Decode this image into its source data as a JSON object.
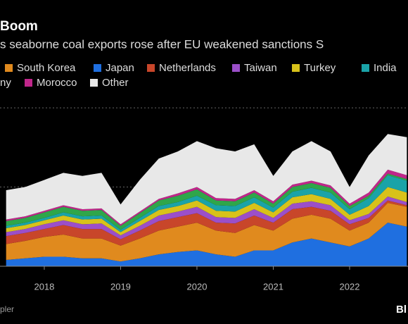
{
  "chart_data": {
    "type": "stacked_area",
    "title": "Boom",
    "subtitle": "s seaborne coal exports rose after EU weakened sanctions S",
    "source": "pler",
    "logo": "Bl",
    "x": [
      2017.5,
      2017.75,
      2018,
      2018.25,
      2018.5,
      2018.75,
      2019,
      2019.25,
      2019.5,
      2019.75,
      2020,
      2020.25,
      2020.5,
      2020.75,
      2021,
      2021.25,
      2021.5,
      2021.75,
      2022,
      2022.25,
      2022.5,
      2022.75
    ],
    "xlim": [
      2017.42,
      2022.765
    ],
    "xticks": [
      2018,
      2019,
      2020,
      2021,
      2022
    ],
    "ylim": [
      0,
      2.25
    ],
    "grid_lines": [
      1,
      2
    ],
    "series": [
      {
        "name": "Japan",
        "color": "#1f6fe0",
        "values": [
          0.08,
          0.1,
          0.12,
          0.12,
          0.1,
          0.1,
          0.06,
          0.1,
          0.15,
          0.18,
          0.2,
          0.15,
          0.12,
          0.2,
          0.2,
          0.3,
          0.35,
          0.3,
          0.25,
          0.35,
          0.55,
          0.5
        ]
      },
      {
        "name": "South Korea",
        "color": "#e08a1e",
        "values": [
          0.2,
          0.22,
          0.25,
          0.28,
          0.25,
          0.25,
          0.2,
          0.25,
          0.3,
          0.32,
          0.35,
          0.3,
          0.3,
          0.32,
          0.25,
          0.3,
          0.3,
          0.3,
          0.2,
          0.2,
          0.25,
          0.25
        ]
      },
      {
        "name": "Netherlands",
        "color": "#c8462a",
        "values": [
          0.1,
          0.1,
          0.1,
          0.12,
          0.12,
          0.12,
          0.08,
          0.1,
          0.12,
          0.12,
          0.12,
          0.1,
          0.12,
          0.12,
          0.1,
          0.12,
          0.1,
          0.1,
          0.08,
          0.06,
          0.03,
          0.02
        ]
      },
      {
        "name": "Taiwan",
        "color": "#9b4fc9",
        "values": [
          0.05,
          0.05,
          0.06,
          0.06,
          0.06,
          0.07,
          0.05,
          0.06,
          0.07,
          0.07,
          0.08,
          0.07,
          0.07,
          0.08,
          0.06,
          0.07,
          0.07,
          0.07,
          0.05,
          0.05,
          0.05,
          0.04
        ]
      },
      {
        "name": "Turkey",
        "color": "#d8c21a",
        "values": [
          0.05,
          0.05,
          0.05,
          0.06,
          0.06,
          0.06,
          0.04,
          0.06,
          0.07,
          0.07,
          0.08,
          0.08,
          0.08,
          0.08,
          0.07,
          0.08,
          0.09,
          0.08,
          0.07,
          0.1,
          0.12,
          0.12
        ]
      },
      {
        "name": "India",
        "color": "#1aa3a8",
        "values": [
          0.03,
          0.03,
          0.03,
          0.04,
          0.04,
          0.04,
          0.03,
          0.04,
          0.05,
          0.05,
          0.06,
          0.07,
          0.07,
          0.07,
          0.06,
          0.07,
          0.08,
          0.08,
          0.07,
          0.1,
          0.15,
          0.15
        ]
      },
      {
        "name": "ny",
        "color": "#2fa64a",
        "values": [
          0.06,
          0.06,
          0.07,
          0.07,
          0.07,
          0.07,
          0.05,
          0.06,
          0.07,
          0.08,
          0.08,
          0.06,
          0.06,
          0.06,
          0.05,
          0.06,
          0.06,
          0.06,
          0.04,
          0.03,
          0.02,
          0.02
        ]
      },
      {
        "name": "Morocco",
        "color": "#c0268a",
        "values": [
          0.02,
          0.02,
          0.02,
          0.02,
          0.02,
          0.02,
          0.02,
          0.02,
          0.02,
          0.03,
          0.03,
          0.03,
          0.03,
          0.03,
          0.03,
          0.03,
          0.03,
          0.03,
          0.03,
          0.04,
          0.05,
          0.05
        ]
      },
      {
        "name": "Other",
        "color": "#e8e8e8",
        "values": [
          0.37,
          0.37,
          0.39,
          0.41,
          0.42,
          0.45,
          0.25,
          0.4,
          0.51,
          0.53,
          0.58,
          0.63,
          0.6,
          0.58,
          0.32,
          0.42,
          0.5,
          0.43,
          0.21,
          0.47,
          0.45,
          0.48
        ]
      }
    ]
  }
}
